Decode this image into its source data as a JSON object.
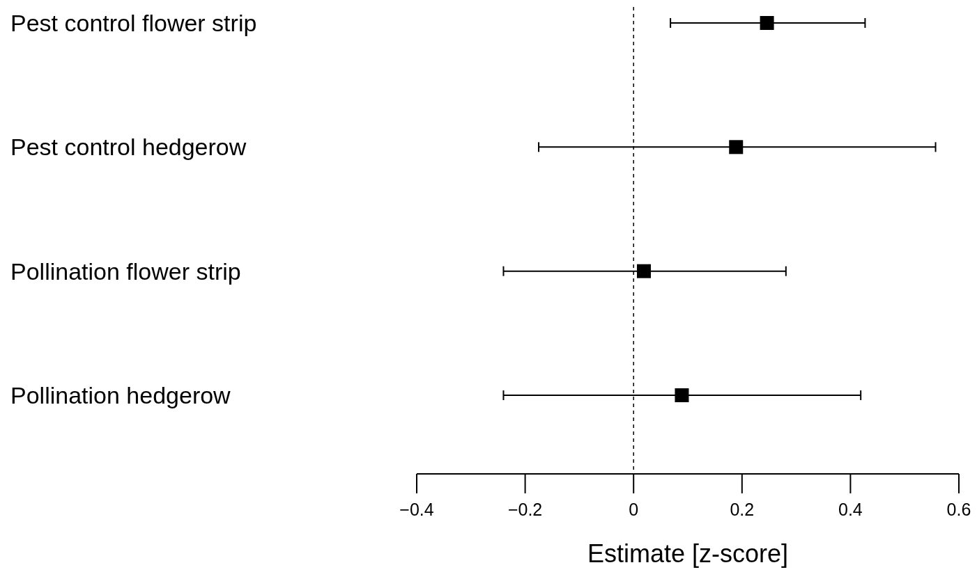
{
  "chart_data": {
    "type": "scatter",
    "orientation": "horizontal",
    "xlabel": "Estimate [z-score]",
    "categories": [
      "Pest control flower strip",
      "Pest control hedgerow",
      "Pollination flower strip",
      "Pollination hedgerow"
    ],
    "values": [
      0.246,
      0.189,
      0.019,
      0.089
    ],
    "errors": [
      [
        0.068,
        0.427
      ],
      [
        -0.175,
        0.557
      ],
      [
        -0.24,
        0.281
      ],
      [
        -0.24,
        0.419
      ]
    ],
    "color": "#000000",
    "marker": "square",
    "xlim": [
      -0.4,
      0.6
    ],
    "xticks": [
      {
        "value": -0.4,
        "label": "−0.4"
      },
      {
        "value": -0.2,
        "label": "−0.2"
      },
      0,
      0.2,
      0.4,
      0.6
    ],
    "ref_lines": [
      {
        "axis": "x",
        "value": 0,
        "line_style": "dashed",
        "color": "#000000"
      }
    ],
    "grid": false
  }
}
